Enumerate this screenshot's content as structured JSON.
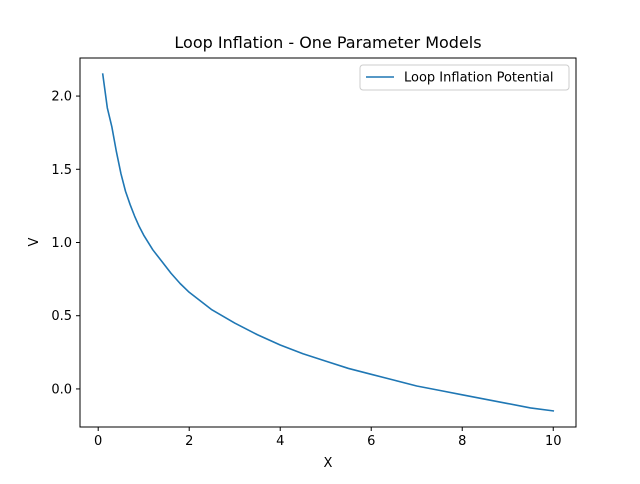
{
  "chart_data": {
    "type": "line",
    "title": "Loop Inflation - One Parameter Models",
    "xlabel": "X",
    "ylabel": "V",
    "xlim": [
      -0.4,
      10.5
    ],
    "ylim": [
      -0.26,
      2.26
    ],
    "xticks": [
      0,
      2,
      4,
      6,
      8,
      10
    ],
    "yticks": [
      0.0,
      0.5,
      1.0,
      1.5,
      2.0
    ],
    "xtick_labels": [
      "0",
      "2",
      "4",
      "6",
      "8",
      "10"
    ],
    "ytick_labels": [
      "0.0",
      "0.5",
      "1.0",
      "1.5",
      "2.0"
    ],
    "grid": false,
    "legend_position": "top-right",
    "series": [
      {
        "name": "Loop Inflation Potential",
        "color": "#1f77b4",
        "x": [
          0.1,
          0.2,
          0.3,
          0.4,
          0.5,
          0.6,
          0.7,
          0.8,
          0.9,
          1.0,
          1.2,
          1.4,
          1.6,
          1.8,
          2.0,
          2.5,
          3.0,
          3.5,
          4.0,
          4.5,
          5.0,
          5.5,
          6.0,
          6.5,
          7.0,
          7.5,
          8.0,
          8.5,
          9.0,
          9.5,
          10.0
        ],
        "values": [
          2.15,
          1.92,
          1.79,
          1.62,
          1.47,
          1.35,
          1.26,
          1.18,
          1.11,
          1.05,
          0.95,
          0.87,
          0.79,
          0.72,
          0.66,
          0.54,
          0.45,
          0.37,
          0.3,
          0.24,
          0.19,
          0.14,
          0.1,
          0.06,
          0.02,
          -0.01,
          -0.04,
          -0.07,
          -0.1,
          -0.13,
          -0.15
        ]
      }
    ]
  }
}
